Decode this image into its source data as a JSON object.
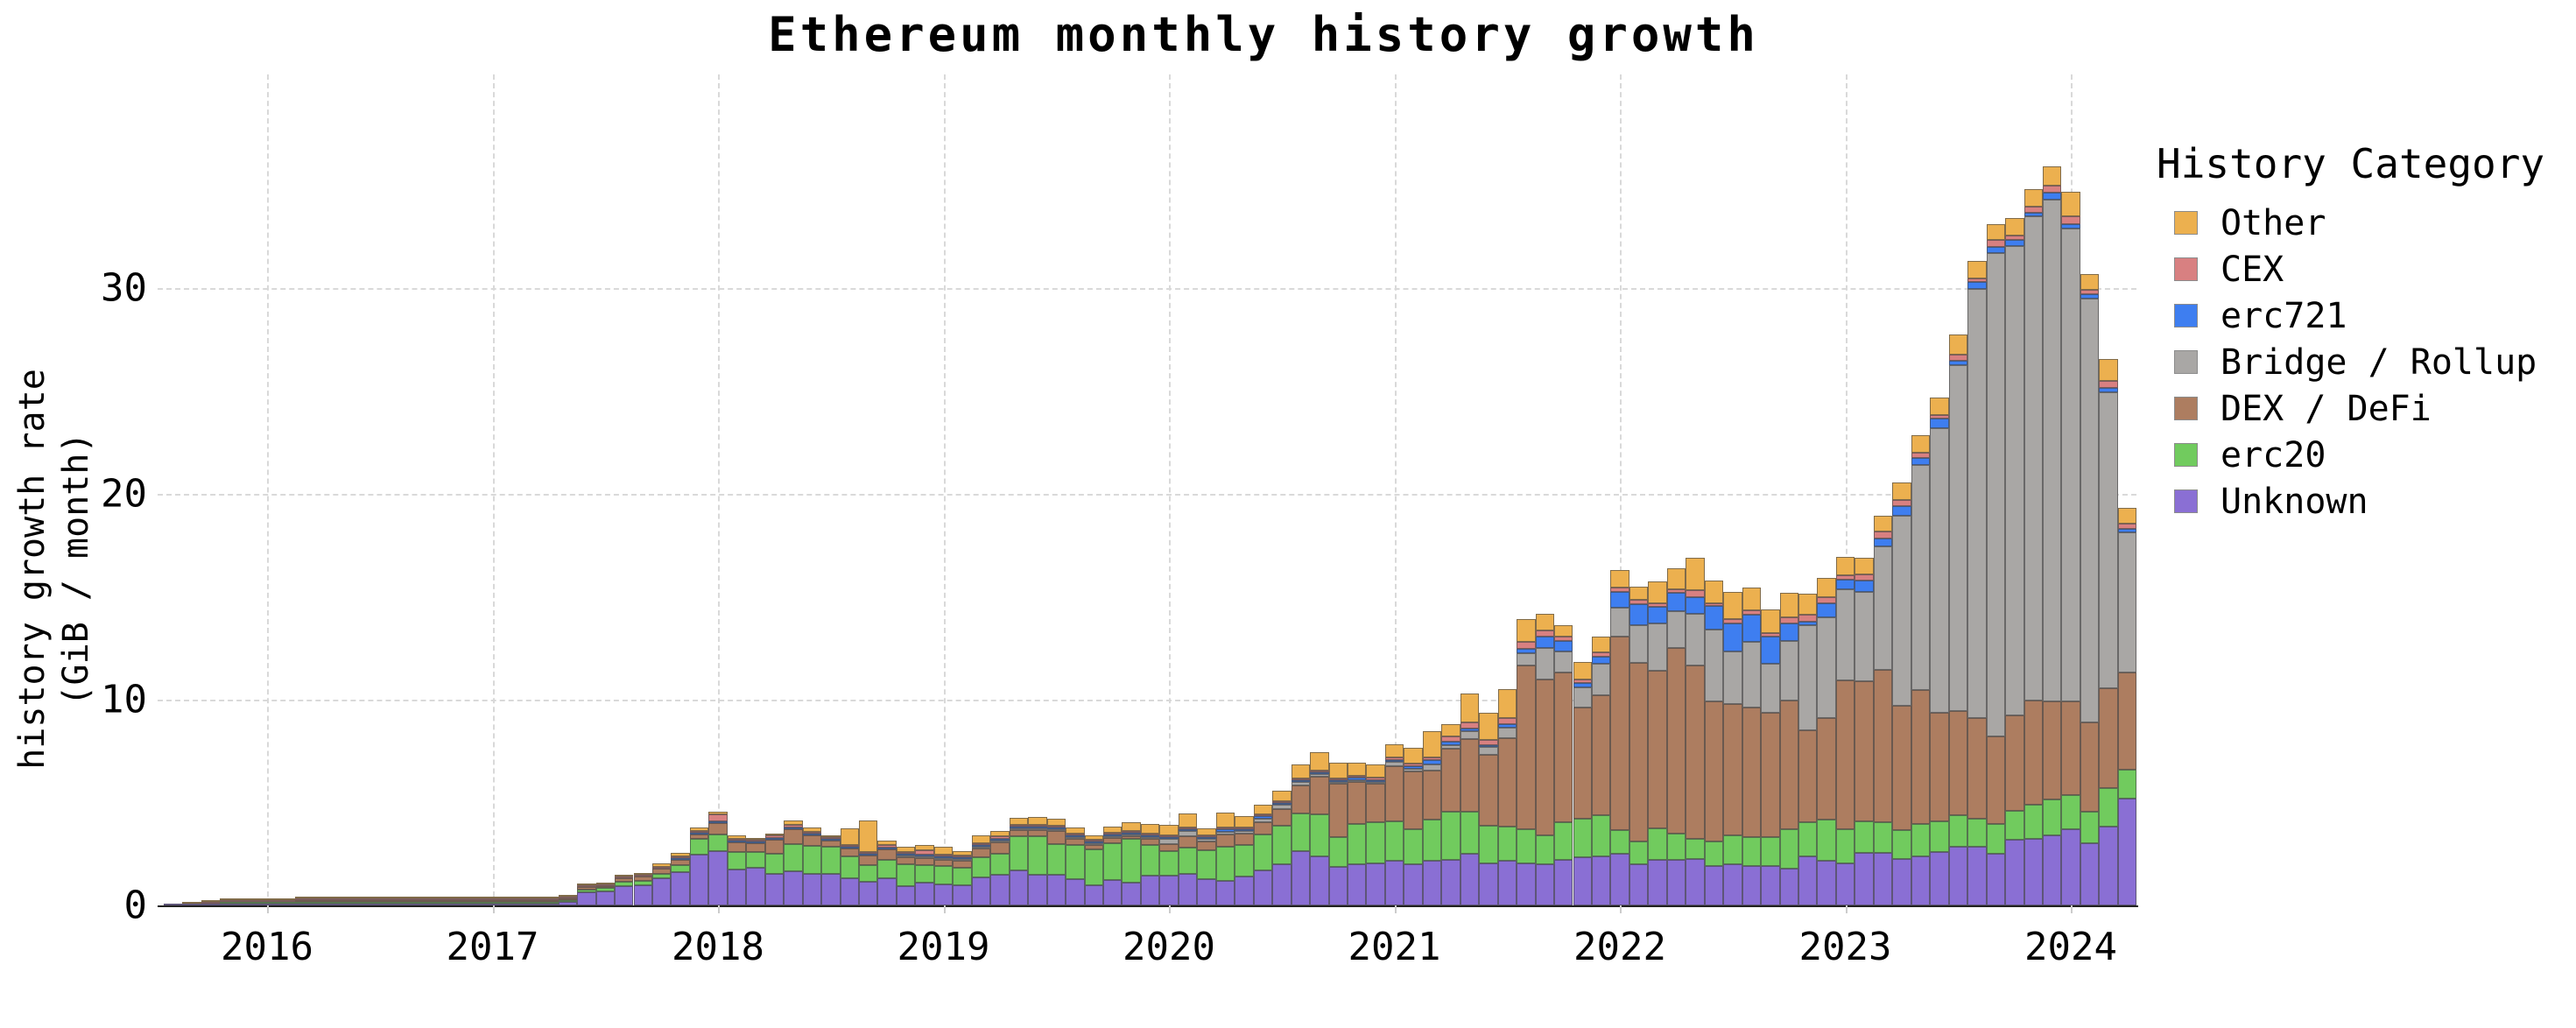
{
  "title": "Ethereum monthly history growth",
  "y_axis": {
    "label_line1": "history growth rate",
    "label_line2": "(GiB / month)",
    "ticks": [
      0,
      10,
      20,
      30
    ]
  },
  "x_axis": {
    "ticks": [
      2016,
      2017,
      2018,
      2019,
      2020,
      2021,
      2022,
      2023,
      2024
    ]
  },
  "legend": {
    "title": "History Category",
    "items": [
      {
        "label": "Other",
        "color": "#ecb04f"
      },
      {
        "label": "CEX",
        "color": "#d88081"
      },
      {
        "label": "erc721",
        "color": "#3e7ef0"
      },
      {
        "label": "Bridge / Rollup",
        "color": "#a9a7a5"
      },
      {
        "label": "DEX / DeFi",
        "color": "#ad7d60"
      },
      {
        "label": "erc20",
        "color": "#71cb5e"
      },
      {
        "label": "Unknown",
        "color": "#8a6fd4"
      }
    ]
  },
  "chart_data": {
    "type": "bar",
    "stacked": true,
    "title": "Ethereum monthly history growth",
    "xlabel": "",
    "ylabel": "history growth rate (GiB / month)",
    "ylim": [
      0,
      37
    ],
    "grid": true,
    "legend_position": "right",
    "months": [
      "2015-08",
      "2015-09",
      "2015-10",
      "2015-11",
      "2015-12",
      "2016-01",
      "2016-02",
      "2016-03",
      "2016-04",
      "2016-05",
      "2016-06",
      "2016-07",
      "2016-08",
      "2016-09",
      "2016-10",
      "2016-11",
      "2016-12",
      "2017-01",
      "2017-02",
      "2017-03",
      "2017-04",
      "2017-05",
      "2017-06",
      "2017-07",
      "2017-08",
      "2017-09",
      "2017-10",
      "2017-11",
      "2017-12",
      "2018-01",
      "2018-02",
      "2018-03",
      "2018-04",
      "2018-05",
      "2018-06",
      "2018-07",
      "2018-08",
      "2018-09",
      "2018-10",
      "2018-11",
      "2018-12",
      "2019-01",
      "2019-02",
      "2019-03",
      "2019-04",
      "2019-05",
      "2019-06",
      "2019-07",
      "2019-08",
      "2019-09",
      "2019-10",
      "2019-11",
      "2019-12",
      "2020-01",
      "2020-02",
      "2020-03",
      "2020-04",
      "2020-05",
      "2020-06",
      "2020-07",
      "2020-08",
      "2020-09",
      "2020-10",
      "2020-11",
      "2020-12",
      "2021-01",
      "2021-02",
      "2021-03",
      "2021-04",
      "2021-05",
      "2021-06",
      "2021-07",
      "2021-08",
      "2021-09",
      "2021-10",
      "2021-11",
      "2021-12",
      "2022-01",
      "2022-02",
      "2022-03",
      "2022-04",
      "2022-05",
      "2022-06",
      "2022-07",
      "2022-08",
      "2022-09",
      "2022-10",
      "2022-11",
      "2022-12",
      "2023-01",
      "2023-02",
      "2023-03",
      "2023-04",
      "2023-05",
      "2023-06",
      "2023-07",
      "2023-08",
      "2023-09",
      "2023-10",
      "2023-11",
      "2023-12",
      "2024-01",
      "2024-02",
      "2024-03",
      "2024-04"
    ],
    "series": [
      {
        "name": "Unknown",
        "color": "#8a6fd4",
        "values": [
          0.01,
          0.02,
          0.03,
          0.06,
          0.08,
          0.08,
          0.08,
          0.08,
          0.08,
          0.14,
          0.07,
          0.07,
          0.1,
          0.1,
          0.2,
          0.06,
          0.06,
          0.06,
          0.07,
          0.1,
          0.14,
          0.35,
          0.7,
          0.75,
          1.0,
          1.0,
          1.35,
          1.7,
          2.5,
          2.7,
          1.8,
          1.85,
          1.55,
          1.7,
          1.55,
          1.6,
          1.35,
          1.15,
          1.35,
          1.0,
          1.15,
          1.05,
          1.0,
          1.4,
          1.55,
          1.75,
          1.55,
          1.55,
          1.35,
          1.05,
          1.3,
          1.15,
          1.5,
          1.5,
          1.55,
          1.3,
          1.2,
          1.4,
          1.7,
          2.0,
          2.65,
          2.4,
          1.9,
          2.0,
          2.05,
          2.2,
          2.0,
          2.15,
          2.2,
          2.5,
          2.05,
          2.15,
          2.05,
          2.0,
          2.2,
          2.35,
          2.4,
          2.5,
          2.0,
          2.2,
          2.2,
          2.25,
          1.9,
          2.0,
          1.9,
          1.9,
          1.8,
          2.4,
          2.15,
          2.05,
          2.55,
          2.55,
          2.25,
          2.4,
          2.6,
          2.85,
          2.85,
          2.5,
          3.2,
          3.25,
          3.4,
          3.7,
          3.0,
          3.85,
          5.2
        ]
      },
      {
        "name": "erc20",
        "color": "#71cb5e",
        "values": [
          0,
          0,
          0,
          0.01,
          0.01,
          0.01,
          0.01,
          0.01,
          0.01,
          0.01,
          0.08,
          0.08,
          0.02,
          0.02,
          0.02,
          0.02,
          0.02,
          0.02,
          0.02,
          0.03,
          0.04,
          0.06,
          0.15,
          0.15,
          0.2,
          0.25,
          0.25,
          0.35,
          0.8,
          0.8,
          0.85,
          0.8,
          1.0,
          1.35,
          1.4,
          1.35,
          1.1,
          0.85,
          0.9,
          1.1,
          0.9,
          0.95,
          0.9,
          1.0,
          1.05,
          1.7,
          1.95,
          1.55,
          1.7,
          1.85,
          1.85,
          2.25,
          1.55,
          1.2,
          1.3,
          1.4,
          1.65,
          1.55,
          1.75,
          1.9,
          1.85,
          2.05,
          1.45,
          2.0,
          2.0,
          1.9,
          1.7,
          2.0,
          2.35,
          2.05,
          1.85,
          1.7,
          1.65,
          1.4,
          1.85,
          1.85,
          2.0,
          1.15,
          1.1,
          1.55,
          1.3,
          1.0,
          1.2,
          1.4,
          1.4,
          1.4,
          1.9,
          1.65,
          2.0,
          1.65,
          1.55,
          1.5,
          1.4,
          1.55,
          1.5,
          1.55,
          1.35,
          1.45,
          1.4,
          1.65,
          1.75,
          1.65,
          1.55,
          1.85,
          1.4
        ]
      },
      {
        "name": "DEX / DeFi",
        "color": "#ad7d60",
        "values": [
          0,
          0,
          0,
          0,
          0,
          0,
          0,
          0.01,
          0.01,
          0.01,
          0.03,
          0.03,
          0.01,
          0.01,
          0.01,
          0.01,
          0.01,
          0.01,
          0.01,
          0.02,
          0.02,
          0.05,
          0.1,
          0.1,
          0.18,
          0.2,
          0.25,
          0.25,
          0.2,
          0.55,
          0.5,
          0.42,
          0.7,
          0.7,
          0.5,
          0.3,
          0.35,
          0.45,
          0.55,
          0.35,
          0.35,
          0.3,
          0.35,
          0.45,
          0.55,
          0.3,
          0.3,
          0.65,
          0.35,
          0.2,
          0.3,
          0.1,
          0.3,
          0.35,
          0.55,
          0.45,
          0.6,
          0.55,
          0.6,
          0.8,
          1.35,
          1.85,
          2.6,
          2.05,
          1.9,
          2.7,
          2.8,
          2.4,
          3.05,
          3.55,
          3.45,
          4.3,
          7.95,
          7.6,
          7.25,
          5.4,
          5.8,
          9.4,
          8.7,
          7.65,
          9.0,
          8.4,
          6.8,
          6.4,
          6.3,
          6.05,
          6.25,
          4.45,
          4.95,
          7.25,
          6.8,
          7.4,
          6.05,
          6.5,
          5.25,
          5.05,
          4.9,
          4.25,
          4.65,
          5.05,
          4.75,
          4.55,
          4.35,
          4.85,
          4.7
        ]
      },
      {
        "name": "Bridge / Rollup",
        "color": "#a9a7a5",
        "values": [
          0,
          0,
          0,
          0,
          0,
          0,
          0,
          0,
          0,
          0,
          0,
          0,
          0,
          0,
          0,
          0,
          0,
          0,
          0,
          0,
          0,
          0,
          0,
          0,
          0,
          0,
          0,
          0,
          0,
          0,
          0,
          0,
          0,
          0,
          0,
          0,
          0,
          0,
          0,
          0.02,
          0.02,
          0.02,
          0.02,
          0.02,
          0.02,
          0.02,
          0.02,
          0.02,
          0.02,
          0.02,
          0.02,
          0.05,
          0.02,
          0.25,
          0.25,
          0.1,
          0.15,
          0.15,
          0.2,
          0.2,
          0.15,
          0.12,
          0.08,
          0.05,
          0.1,
          0.2,
          0.15,
          0.3,
          0.2,
          0.35,
          0.4,
          0.5,
          0.6,
          1.5,
          1.05,
          1.0,
          1.55,
          1.4,
          1.8,
          2.3,
          1.8,
          2.5,
          3.5,
          2.55,
          3.2,
          2.4,
          2.9,
          5.1,
          4.9,
          4.4,
          4.35,
          6.0,
          9.25,
          10.95,
          13.85,
          16.8,
          20.85,
          23.5,
          22.8,
          23.55,
          24.4,
          23.0,
          20.6,
          14.4,
          6.85
        ]
      },
      {
        "name": "erc721",
        "color": "#3e7ef0",
        "values": [
          0,
          0,
          0,
          0,
          0,
          0,
          0,
          0,
          0,
          0,
          0,
          0,
          0,
          0,
          0,
          0,
          0,
          0,
          0,
          0,
          0,
          0,
          0,
          0,
          0,
          0,
          0,
          0.02,
          0.02,
          0.02,
          0.02,
          0.02,
          0.02,
          0.02,
          0.02,
          0.02,
          0.02,
          0.02,
          0.02,
          0.05,
          0.03,
          0.07,
          0.07,
          0.1,
          0.05,
          0.1,
          0.05,
          0.08,
          0.06,
          0.02,
          0.02,
          0.02,
          0.1,
          0.05,
          0.1,
          0.1,
          0.12,
          0.08,
          0.1,
          0.07,
          0.08,
          0.05,
          0.1,
          0.12,
          0.05,
          0.05,
          0.1,
          0.2,
          0.15,
          0.15,
          0.05,
          0.15,
          0.2,
          0.55,
          0.5,
          0.2,
          0.35,
          0.8,
          1.05,
          0.8,
          0.9,
          0.85,
          1.15,
          1.35,
          1.35,
          1.3,
          0.85,
          0.2,
          0.7,
          0.5,
          0.55,
          0.4,
          0.45,
          0.35,
          0.45,
          0.2,
          0.35,
          0.3,
          0.3,
          0.15,
          0.35,
          0.2,
          0.2,
          0.2,
          0.15
        ]
      },
      {
        "name": "CEX",
        "color": "#d88081",
        "values": [
          0,
          0,
          0.01,
          0.01,
          0.01,
          0.01,
          0.02,
          0.06,
          0.06,
          0.01,
          0.01,
          0.01,
          0.01,
          0.01,
          0.01,
          0.08,
          0.08,
          0.08,
          0.05,
          0.03,
          0.02,
          0.02,
          0.02,
          0.02,
          0.03,
          0.03,
          0.03,
          0.05,
          0.1,
          0.35,
          0.08,
          0.1,
          0.12,
          0.15,
          0.12,
          0.05,
          0.08,
          0.1,
          0.1,
          0.05,
          0.2,
          0.05,
          0.1,
          0.05,
          0.15,
          0.05,
          0.02,
          0.02,
          0.02,
          0.02,
          0.05,
          0.02,
          0.02,
          0.02,
          0.05,
          0.05,
          0.07,
          0.06,
          0.06,
          0.09,
          0.07,
          0.08,
          0.05,
          0.05,
          0.1,
          0.15,
          0.15,
          0.15,
          0.25,
          0.3,
          0.25,
          0.3,
          0.35,
          0.3,
          0.2,
          0.2,
          0.2,
          0.2,
          0.2,
          0.2,
          0.15,
          0.3,
          0.15,
          0.2,
          0.2,
          0.2,
          0.3,
          0.35,
          0.3,
          0.2,
          0.3,
          0.3,
          0.3,
          0.25,
          0.2,
          0.3,
          0.15,
          0.35,
          0.2,
          0.3,
          0.35,
          0.4,
          0.2,
          0.35,
          0.25
        ]
      },
      {
        "name": "Other",
        "color": "#ecb04f",
        "values": [
          0,
          0.01,
          0.01,
          0.01,
          0.01,
          0.01,
          0.01,
          0.02,
          0.02,
          0.01,
          0.01,
          0.01,
          0.01,
          0.01,
          0.02,
          0.01,
          0.01,
          0.01,
          0.01,
          0.02,
          0.03,
          0.05,
          0.08,
          0.08,
          0.1,
          0.1,
          0.15,
          0.2,
          0.15,
          0.15,
          0.15,
          0.1,
          0.12,
          0.2,
          0.2,
          0.1,
          0.85,
          1.55,
          0.25,
          0.3,
          0.3,
          0.4,
          0.2,
          0.4,
          0.25,
          0.35,
          0.4,
          0.35,
          0.3,
          0.25,
          0.3,
          0.45,
          0.45,
          0.55,
          0.65,
          0.35,
          0.7,
          0.55,
          0.5,
          0.5,
          0.7,
          0.9,
          0.75,
          0.65,
          0.65,
          0.65,
          0.75,
          1.25,
          0.6,
          1.4,
          1.3,
          1.4,
          1.1,
          0.8,
          0.55,
          0.85,
          0.75,
          0.85,
          0.65,
          1.05,
          1.05,
          1.6,
          1.07,
          1.35,
          1.1,
          1.15,
          1.2,
          1.0,
          0.9,
          0.9,
          0.8,
          0.8,
          0.85,
          0.85,
          0.85,
          1.0,
          0.85,
          0.75,
          0.85,
          0.85,
          0.9,
          1.2,
          0.8,
          1.05,
          0.75
        ]
      }
    ]
  }
}
